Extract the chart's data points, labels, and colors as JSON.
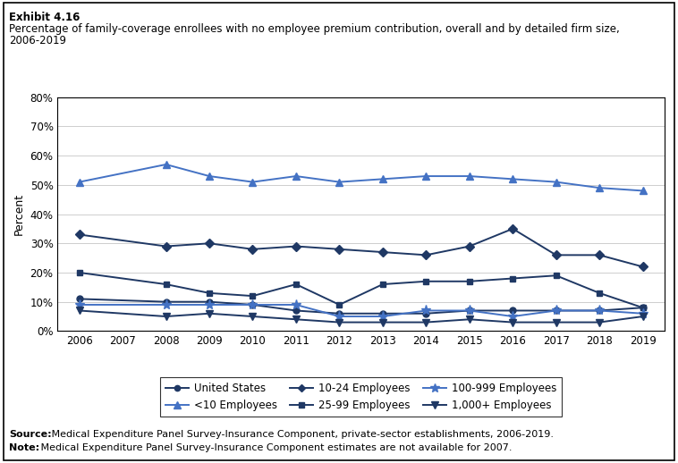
{
  "years": [
    2006,
    2008,
    2009,
    2010,
    2011,
    2012,
    2013,
    2014,
    2015,
    2016,
    2017,
    2018,
    2019
  ],
  "series": {
    "United States": {
      "values": [
        11,
        10,
        10,
        9,
        7,
        6,
        6,
        6,
        7,
        7,
        7,
        7,
        8
      ],
      "color": "#1F3864",
      "marker": "o",
      "markersize": 5,
      "linewidth": 1.4
    },
    "<10 Employees": {
      "values": [
        51,
        57,
        53,
        51,
        53,
        51,
        52,
        53,
        53,
        52,
        51,
        49,
        48
      ],
      "color": "#4472C4",
      "marker": "^",
      "markersize": 6,
      "linewidth": 1.4
    },
    "10-24 Employees": {
      "values": [
        33,
        29,
        30,
        28,
        29,
        28,
        27,
        26,
        29,
        35,
        26,
        26,
        22
      ],
      "color": "#1F3864",
      "marker": "D",
      "markersize": 5,
      "linewidth": 1.4
    },
    "25-99 Employees": {
      "values": [
        20,
        16,
        13,
        12,
        16,
        9,
        16,
        17,
        17,
        18,
        19,
        13,
        8
      ],
      "color": "#1F3864",
      "marker": "s",
      "markersize": 5,
      "linewidth": 1.4
    },
    "100-999 Employees": {
      "values": [
        9,
        9,
        9,
        9,
        9,
        5,
        5,
        7,
        7,
        5,
        7,
        7,
        6
      ],
      "color": "#4472C4",
      "marker": "*",
      "markersize": 8,
      "linewidth": 1.4
    },
    "1,000+ Employees": {
      "values": [
        7,
        5,
        6,
        5,
        4,
        3,
        3,
        3,
        4,
        3,
        3,
        3,
        5
      ],
      "color": "#1F3864",
      "marker": "v",
      "markersize": 6,
      "linewidth": 1.4
    }
  },
  "title_line1": "Exhibit 4.16",
  "title_line2": "Percentage of family-coverage enrollees with no employee premium contribution, overall and by detailed firm size,",
  "title_line3": "2006-2019",
  "ylabel": "Percent",
  "ylim": [
    0,
    80
  ],
  "yticks": [
    0,
    10,
    20,
    30,
    40,
    50,
    60,
    70,
    80
  ],
  "source_bold": "Source:",
  "source_rest": " Medical Expenditure Panel Survey-Insurance Component, private-sector establishments, 2006-2019.",
  "note_bold": "Note:",
  "note_rest": " Medical Expenditure Panel Survey-Insurance Component estimates are not available for 2007.",
  "legend_order": [
    "United States",
    "<10 Employees",
    "10-24 Employees",
    "25-99 Employees",
    "100-999 Employees",
    "1,000+ Employees"
  ]
}
